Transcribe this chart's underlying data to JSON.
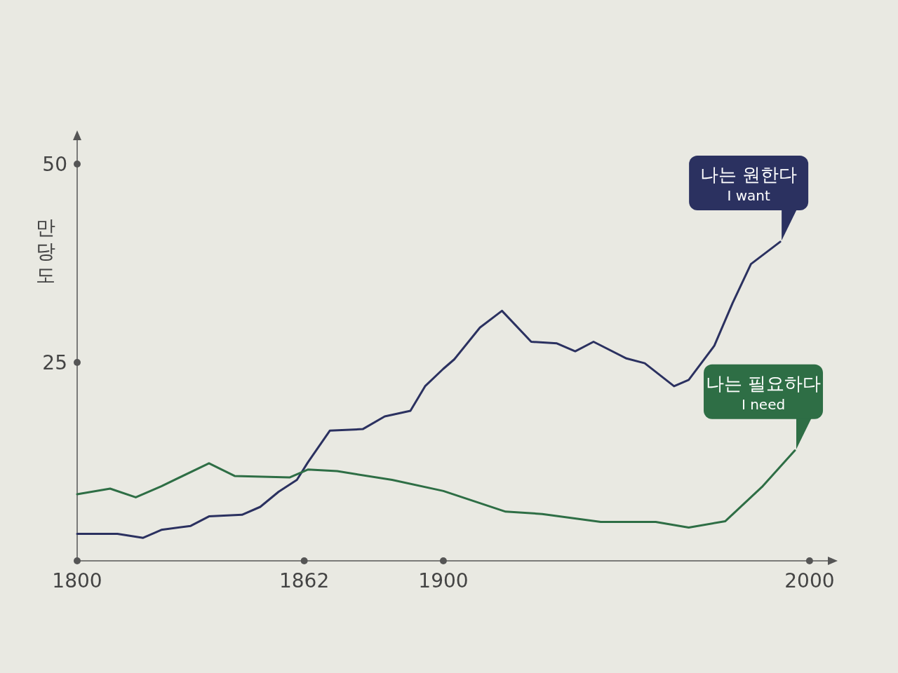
{
  "chart_data": {
    "type": "line",
    "ylabel": "만당도",
    "xlim": [
      1800,
      2005
    ],
    "xticks": [
      1800,
      1862,
      1900,
      2000
    ],
    "ylim": [
      0,
      53
    ],
    "yticks": [
      25,
      50
    ],
    "grid": false,
    "series": [
      {
        "name": "나는 원한다\nI want",
        "color": "#2b3160",
        "x": [
          1800,
          1811,
          1818,
          1823,
          1831,
          1836,
          1845,
          1850,
          1855,
          1860,
          1863,
          1869,
          1878,
          1884,
          1891,
          1895,
          1900,
          1903,
          1910,
          1916,
          1924,
          1931,
          1936,
          1941,
          1950,
          1955,
          1963,
          1967,
          1974,
          1979,
          1984,
          1992
        ],
        "values": [
          3.4,
          3.4,
          2.9,
          3.9,
          4.4,
          5.6,
          5.8,
          6.8,
          8.7,
          10.2,
          12.4,
          16.4,
          16.6,
          18.2,
          18.9,
          22.0,
          24.2,
          25.4,
          29.4,
          31.5,
          27.6,
          27.4,
          26.4,
          27.6,
          25.5,
          24.9,
          22.0,
          22.8,
          27.1,
          32.5,
          37.4,
          40.2
        ]
      },
      {
        "name": "나는 필요하다\nI need",
        "color": "#2e6e45",
        "x": [
          1800,
          1809,
          1816,
          1823,
          1836,
          1843,
          1858,
          1863,
          1871,
          1886,
          1900,
          1917,
          1927,
          1943,
          1958,
          1967,
          1977,
          1987,
          1996
        ],
        "values": [
          8.4,
          9.1,
          8.0,
          9.4,
          12.3,
          10.7,
          10.5,
          11.5,
          11.3,
          10.2,
          8.8,
          6.2,
          5.9,
          4.9,
          4.9,
          4.2,
          5.0,
          9.3,
          13.9
        ]
      }
    ]
  }
}
